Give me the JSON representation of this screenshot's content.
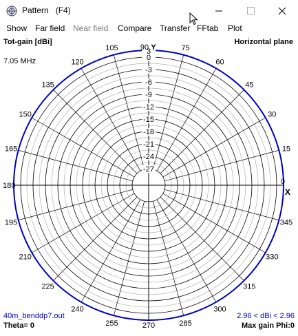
{
  "window": {
    "title": "Pattern   (F4)",
    "icon": "app-icon"
  },
  "menu": {
    "items": [
      {
        "label": "Show",
        "enabled": true
      },
      {
        "label": "Far field",
        "enabled": true
      },
      {
        "label": "Near field",
        "enabled": false
      },
      {
        "label": "Compare",
        "enabled": true
      },
      {
        "label": "Transfer",
        "enabled": true
      },
      {
        "label": "FFtab",
        "enabled": true
      },
      {
        "label": "Plot",
        "enabled": true
      }
    ]
  },
  "plot": {
    "quantity_label": "Tot-gain [dBi]",
    "plane_label": "Horizontal plane",
    "frequency": "7.05 MHz",
    "y_axis_label": "Y",
    "x_axis_marker": "X",
    "radial_labels": [
      "3",
      "0",
      "-3",
      "-6",
      "-9",
      "-12",
      "-15",
      "-18",
      "-21",
      "-24",
      "-27"
    ],
    "angle_labels": [
      "0",
      "15",
      "30",
      "45",
      "60",
      "75",
      "90",
      "105",
      "120",
      "135",
      "150",
      "165",
      "180",
      "195",
      "210",
      "225",
      "240",
      "255",
      "270",
      "285",
      "300",
      "315",
      "330",
      "345"
    ],
    "file_name": "40m_benddp7.out",
    "gain_range": "2.96 < dBi < 2.96",
    "theta": "Theta= 0",
    "max_gain": "Max gain Phi:0",
    "colors": {
      "outer_ring": "#0000c0",
      "grid": "#000000",
      "grid_minor": "#b0b0b0",
      "info_text": "#0000c0"
    }
  }
}
